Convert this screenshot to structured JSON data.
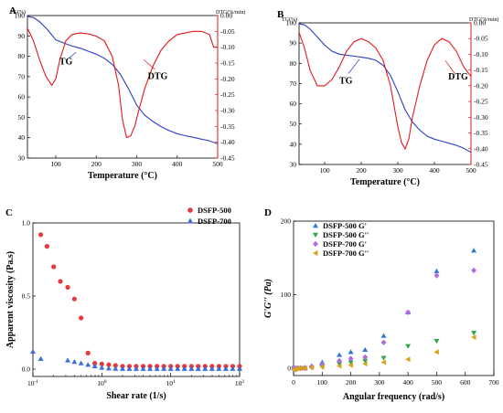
{
  "chart_data": [
    {
      "panel": "A",
      "type": "line",
      "xlabel": "Temperature (°C)",
      "ylabel_left": "TG(%)",
      "ylabel_right": "DTG(%/min)",
      "xlim": [
        30,
        500
      ],
      "x_ticks": [
        100,
        200,
        300,
        400,
        500
      ],
      "ylim_left": [
        30,
        100
      ],
      "y_ticks_left": [
        30,
        40,
        50,
        60,
        70,
        80,
        90,
        100
      ],
      "ylim_right": [
        -0.45,
        0
      ],
      "y_ticks_right": [
        "0.00",
        "-0.05",
        "-0.10",
        "-0.15",
        "-0.20",
        "-0.25",
        "-0.30",
        "-0.35",
        "-0.40",
        "-0.45"
      ],
      "series": [
        {
          "name": "TG",
          "axis": "left",
          "color": "#2b3fc2",
          "x": [
            30,
            45,
            60,
            80,
            100,
            120,
            140,
            160,
            180,
            200,
            220,
            240,
            260,
            280,
            300,
            320,
            340,
            360,
            380,
            400,
            420,
            440,
            460,
            480,
            500
          ],
          "y": [
            99.5,
            99,
            97,
            93,
            88,
            86.5,
            85,
            84,
            82.5,
            81,
            79,
            76,
            71,
            64,
            56,
            51,
            48,
            45.5,
            43.5,
            42,
            41,
            40.2,
            39.3,
            38.5,
            37
          ]
        },
        {
          "name": "DTG",
          "axis": "right",
          "color": "#e41a1c",
          "x": [
            30,
            45,
            60,
            75,
            90,
            100,
            110,
            125,
            140,
            160,
            180,
            200,
            220,
            240,
            255,
            265,
            275,
            285,
            295,
            305,
            320,
            340,
            360,
            380,
            400,
            420,
            440,
            460,
            480,
            490,
            500
          ],
          "y": [
            -0.04,
            -0.08,
            -0.14,
            -0.19,
            -0.22,
            -0.2,
            -0.14,
            -0.08,
            -0.06,
            -0.055,
            -0.058,
            -0.065,
            -0.08,
            -0.13,
            -0.22,
            -0.33,
            -0.385,
            -0.38,
            -0.35,
            -0.3,
            -0.23,
            -0.16,
            -0.11,
            -0.08,
            -0.06,
            -0.055,
            -0.05,
            -0.05,
            -0.06,
            -0.1,
            -0.1
          ]
        }
      ],
      "annotations": [
        "TG",
        "DTG"
      ]
    },
    {
      "panel": "B",
      "type": "line",
      "xlabel": "Temperature (°C)",
      "ylabel_left": "TG(%)",
      "ylabel_right": "DTG(%/min)",
      "xlim": [
        30,
        500
      ],
      "x_ticks": [
        100,
        200,
        300,
        400,
        500
      ],
      "ylim_left": [
        30,
        100
      ],
      "y_ticks_left": [
        30,
        40,
        50,
        60,
        70,
        80,
        90,
        100
      ],
      "ylim_right": [
        -0.45,
        0
      ],
      "y_ticks_right": [
        "0.00",
        "-0.05",
        "-0.10",
        "-0.15",
        "-0.20",
        "-0.25",
        "-0.30",
        "-0.35",
        "-0.40",
        "-0.45"
      ],
      "series": [
        {
          "name": "TG",
          "axis": "left",
          "color": "#2b3fc2",
          "x": [
            30,
            45,
            60,
            80,
            100,
            120,
            140,
            160,
            180,
            200,
            220,
            240,
            260,
            280,
            300,
            320,
            340,
            360,
            380,
            400,
            420,
            440,
            460,
            480,
            500
          ],
          "y": [
            99.5,
            99,
            97,
            93,
            89,
            86,
            84.5,
            84,
            83.5,
            83,
            82.5,
            81.5,
            79,
            74,
            66,
            57,
            51,
            47,
            44,
            42.5,
            41.5,
            40.5,
            39.5,
            38,
            36
          ]
        },
        {
          "name": "DTG",
          "axis": "right",
          "color": "#e41a1c",
          "x": [
            30,
            45,
            60,
            80,
            100,
            120,
            140,
            160,
            180,
            200,
            220,
            240,
            260,
            280,
            300,
            310,
            320,
            330,
            340,
            360,
            380,
            400,
            420,
            440,
            460,
            480,
            500
          ],
          "y": [
            -0.03,
            -0.08,
            -0.15,
            -0.2,
            -0.2,
            -0.18,
            -0.14,
            -0.09,
            -0.06,
            -0.05,
            -0.06,
            -0.08,
            -0.12,
            -0.2,
            -0.33,
            -0.38,
            -0.4,
            -0.37,
            -0.3,
            -0.2,
            -0.12,
            -0.07,
            -0.05,
            -0.06,
            -0.09,
            -0.14,
            -0.17
          ]
        }
      ],
      "annotations": [
        "TG",
        "DTG"
      ]
    },
    {
      "panel": "C",
      "type": "scatter",
      "xlabel": "Shear rate (1/s)",
      "ylabel": "Apparent viscosity (Pa.s)",
      "x_scale": "log",
      "xlim": [
        0.1,
        100
      ],
      "x_ticks": [
        "10^-1",
        "10^0",
        "10^1",
        "10^2"
      ],
      "ylim": [
        -0.05,
        1.0
      ],
      "y_ticks": [
        "0.0",
        "0.5",
        "1.0"
      ],
      "legend_position": "top-right",
      "series": [
        {
          "name": "DSFP-500",
          "marker": "circle",
          "color": "#e63a3a",
          "x": [
            0.13,
            0.16,
            0.2,
            0.25,
            0.32,
            0.4,
            0.5,
            0.63,
            0.79,
            1.0,
            1.26,
            1.58,
            2.0,
            2.51,
            3.16,
            3.98,
            5.01,
            6.31,
            7.94,
            10,
            12.6,
            15.8,
            20,
            25.1,
            31.6,
            39.8,
            50.1,
            63.1,
            79.4,
            100
          ],
          "y": [
            0.92,
            0.84,
            0.7,
            0.6,
            0.56,
            0.48,
            0.35,
            0.11,
            0.04,
            0.035,
            0.03,
            0.025,
            0.02,
            0.02,
            0.02,
            0.02,
            0.02,
            0.02,
            0.02,
            0.02,
            0.02,
            0.02,
            0.02,
            0.02,
            0.02,
            0.02,
            0.02,
            0.02,
            0.02,
            0.02
          ]
        },
        {
          "name": "DSFP-700",
          "marker": "triangle",
          "color": "#3a6fd8",
          "x": [
            0.1,
            0.13,
            0.32,
            0.4,
            0.5,
            0.63,
            0.79,
            1.0,
            1.26,
            1.58,
            2.0,
            2.51,
            3.16,
            3.98,
            5.01,
            6.31,
            7.94,
            10,
            12.6,
            15.8,
            20,
            25.1,
            31.6,
            39.8,
            50.1,
            63.1,
            79.4,
            100
          ],
          "y": [
            0.12,
            0.07,
            0.06,
            0.05,
            0.04,
            0.03,
            0.02,
            0.01,
            0.005,
            0.003,
            0.002,
            0.002,
            0.002,
            0.002,
            0.002,
            0.002,
            0.002,
            0.002,
            0.002,
            0.002,
            0.002,
            0.002,
            0.002,
            0.002,
            0.002,
            0.002,
            0.002,
            0.002
          ]
        }
      ]
    },
    {
      "panel": "D",
      "type": "scatter",
      "xlabel": "Angular frequency  (rad/s)",
      "ylabel": "G'G'' (Pa)",
      "xlim": [
        0,
        700
      ],
      "x_ticks": [
        0,
        100,
        200,
        300,
        400,
        500,
        600,
        700
      ],
      "ylim": [
        -10,
        200
      ],
      "y_ticks": [
        0,
        100,
        200
      ],
      "legend_position": "top-left",
      "series": [
        {
          "name": "DSFP-500 G'",
          "marker": "triangle-up",
          "color": "#2e7ad1",
          "x": [
            1,
            2,
            5,
            10,
            16,
            25,
            40,
            63,
            100,
            160,
            200,
            250,
            315,
            400,
            500,
            630
          ],
          "y": [
            0,
            0,
            0,
            0,
            0,
            0,
            1,
            3,
            8,
            18,
            22,
            25,
            44,
            76,
            132,
            160
          ]
        },
        {
          "name": "DSFP-500 G''",
          "marker": "triangle-down",
          "color": "#2aa84a",
          "x": [
            1,
            2,
            5,
            10,
            16,
            25,
            40,
            63,
            100,
            160,
            200,
            250,
            315,
            400,
            500,
            630
          ],
          "y": [
            0,
            0,
            0,
            0,
            0,
            0,
            0,
            1,
            2,
            6,
            8,
            10,
            14,
            30,
            37,
            48
          ]
        },
        {
          "name": "DSFP-700 G'",
          "marker": "diamond",
          "color": "#b36be0",
          "x": [
            1,
            2,
            5,
            10,
            16,
            25,
            40,
            63,
            100,
            160,
            200,
            250,
            315,
            400,
            500,
            630
          ],
          "y": [
            0,
            0,
            0,
            0,
            0,
            0,
            0,
            2,
            5,
            10,
            13,
            15,
            35,
            76,
            126,
            133
          ]
        },
        {
          "name": "DSFP-700 G''",
          "marker": "triangle-left",
          "color": "#d9a21b",
          "x": [
            1,
            2,
            5,
            10,
            16,
            25,
            40,
            63,
            100,
            160,
            200,
            250,
            315,
            400,
            500,
            630
          ],
          "y": [
            -2,
            -2,
            -1,
            -1,
            0,
            0,
            0,
            1,
            2,
            3,
            4,
            6,
            8,
            12,
            22,
            42
          ]
        }
      ]
    }
  ]
}
